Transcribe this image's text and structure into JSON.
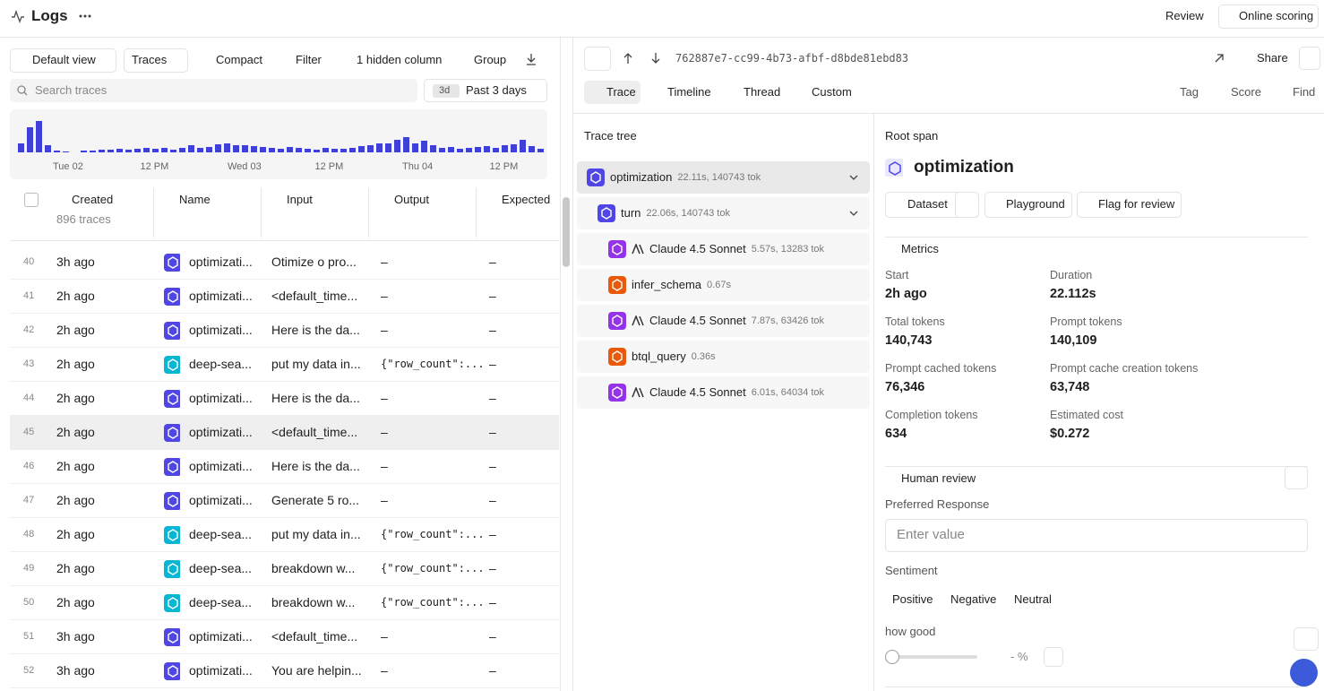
{
  "header": {
    "title": "Logs",
    "actions": [
      "Review",
      "Online scoring"
    ]
  },
  "toolbar": {
    "buttons": [
      "Default view",
      "Traces",
      "Compact",
      "Filter",
      "1 hidden column",
      "Group"
    ],
    "search_placeholder": "Search traces",
    "range_badge": "3d",
    "range": "Past 3 days"
  },
  "histogram": {
    "color": "#3f3fd9",
    "values": [
      10,
      28,
      35,
      8,
      2,
      1,
      0,
      2,
      2,
      3,
      3,
      4,
      3,
      4,
      5,
      4,
      5,
      3,
      5,
      8,
      5,
      6,
      9,
      10,
      8,
      8,
      7,
      6,
      5,
      4,
      6,
      5,
      4,
      3,
      5,
      4,
      4,
      5,
      7,
      8,
      10,
      10,
      14,
      17,
      10,
      13,
      8,
      5,
      6,
      4,
      5,
      6,
      7,
      5,
      8,
      9,
      14,
      7,
      4
    ],
    "labels": [
      "Tue 02",
      "12 PM",
      "Wed 03",
      "12 PM",
      "Thu 04",
      "12 PM"
    ]
  },
  "table": {
    "columns": [
      "Created",
      "Name",
      "Input",
      "Output",
      "Expected"
    ],
    "count": "896 traces",
    "rows": [
      [
        "40",
        "3h ago",
        "optimizati...",
        "Otimize o pro...",
        "–",
        "–"
      ],
      [
        "41",
        "2h ago",
        "optimizati...",
        "<default_time...",
        "–",
        "–"
      ],
      [
        "42",
        "2h ago",
        "optimizati...",
        "Here is the da...",
        "–",
        "–"
      ],
      [
        "43",
        "2h ago",
        "deep-sea...",
        "put my data in...",
        "{\"row_count\":...",
        "–"
      ],
      [
        "44",
        "2h ago",
        "optimizati...",
        "Here is the da...",
        "–",
        "–"
      ],
      [
        "45",
        "2h ago",
        "optimizati...",
        "<default_time...",
        "–",
        "–"
      ],
      [
        "46",
        "2h ago",
        "optimizati...",
        "Here is the da...",
        "–",
        "–"
      ],
      [
        "47",
        "2h ago",
        "optimizati...",
        "Generate 5 ro...",
        "–",
        "–"
      ],
      [
        "48",
        "2h ago",
        "deep-sea...",
        "put my data in...",
        "{\"row_count\":...",
        "–"
      ],
      [
        "49",
        "2h ago",
        "deep-sea...",
        "breakdown w...",
        "{\"row_count\":...",
        "–"
      ],
      [
        "50",
        "2h ago",
        "deep-sea...",
        "breakdown w...",
        "{\"row_count\":...",
        "–"
      ],
      [
        "51",
        "3h ago",
        "optimizati...",
        "<default_time...",
        "–",
        "–"
      ],
      [
        "52",
        "3h ago",
        "optimizati...",
        "You are helpin...",
        "–",
        "–"
      ]
    ],
    "icon_colors": [
      "#4f46e5",
      "#4f46e5",
      "#4f46e5",
      "#06b6d4",
      "#4f46e5",
      "#4f46e5",
      "#4f46e5",
      "#4f46e5",
      "#06b6d4",
      "#06b6d4",
      "#06b6d4",
      "#4f46e5",
      "#4f46e5"
    ]
  },
  "detail": {
    "trace_id": "762887e7-cc99-4b73-afbf-d8bde81ebd83",
    "share": "Share",
    "tabs": [
      "Trace",
      "Timeline",
      "Thread",
      "Custom"
    ],
    "tools": [
      "Tag",
      "Score",
      "Find"
    ]
  },
  "tree": {
    "title": "Trace tree",
    "nodes": [
      {
        "name": "optimization",
        "meta": "22.11s, 140743 tok",
        "depth": 0,
        "color": "#4f46e5"
      },
      {
        "name": "turn",
        "meta": "22.06s, 140743 tok",
        "depth": 1,
        "color": "#4f46e5"
      },
      {
        "name": "Claude 4.5 Sonnet",
        "meta": "5.57s, 13283 tok",
        "depth": 2,
        "color": "#9333ea"
      },
      {
        "name": "infer_schema",
        "meta": "0.67s",
        "depth": 2,
        "color": "#ea580c"
      },
      {
        "name": "Claude 4.5 Sonnet",
        "meta": "7.87s, 63426 tok",
        "depth": 2,
        "color": "#9333ea"
      },
      {
        "name": "btql_query",
        "meta": "0.36s",
        "depth": 2,
        "color": "#ea580c"
      },
      {
        "name": "Claude 4.5 Sonnet",
        "meta": "6.01s, 64034 tok",
        "depth": 2,
        "color": "#9333ea"
      }
    ]
  },
  "span": {
    "label": "Root span",
    "title": "optimization",
    "buttons": [
      "Dataset",
      "Playground",
      "Flag for review"
    ]
  },
  "metrics": {
    "title": "Metrics",
    "items": [
      {
        "label": "Start",
        "value": "2h ago"
      },
      {
        "label": "Duration",
        "value": "22.112s"
      },
      {
        "label": "Total tokens",
        "value": "140,743"
      },
      {
        "label": "Prompt tokens",
        "value": "140,109"
      },
      {
        "label": "Prompt cached tokens",
        "value": "76,346"
      },
      {
        "label": "Prompt cache creation tokens",
        "value": "63,748"
      },
      {
        "label": "Completion tokens",
        "value": "634"
      },
      {
        "label": "Estimated cost",
        "value": "$0.272"
      }
    ]
  },
  "review": {
    "title": "Human review",
    "preferred_label": "Preferred Response",
    "placeholder": "Enter value",
    "sentiment_label": "Sentiment",
    "sentiments": [
      "Positive",
      "Negative",
      "Neutral"
    ],
    "slider_label": "how good",
    "slider_value": "- %"
  }
}
